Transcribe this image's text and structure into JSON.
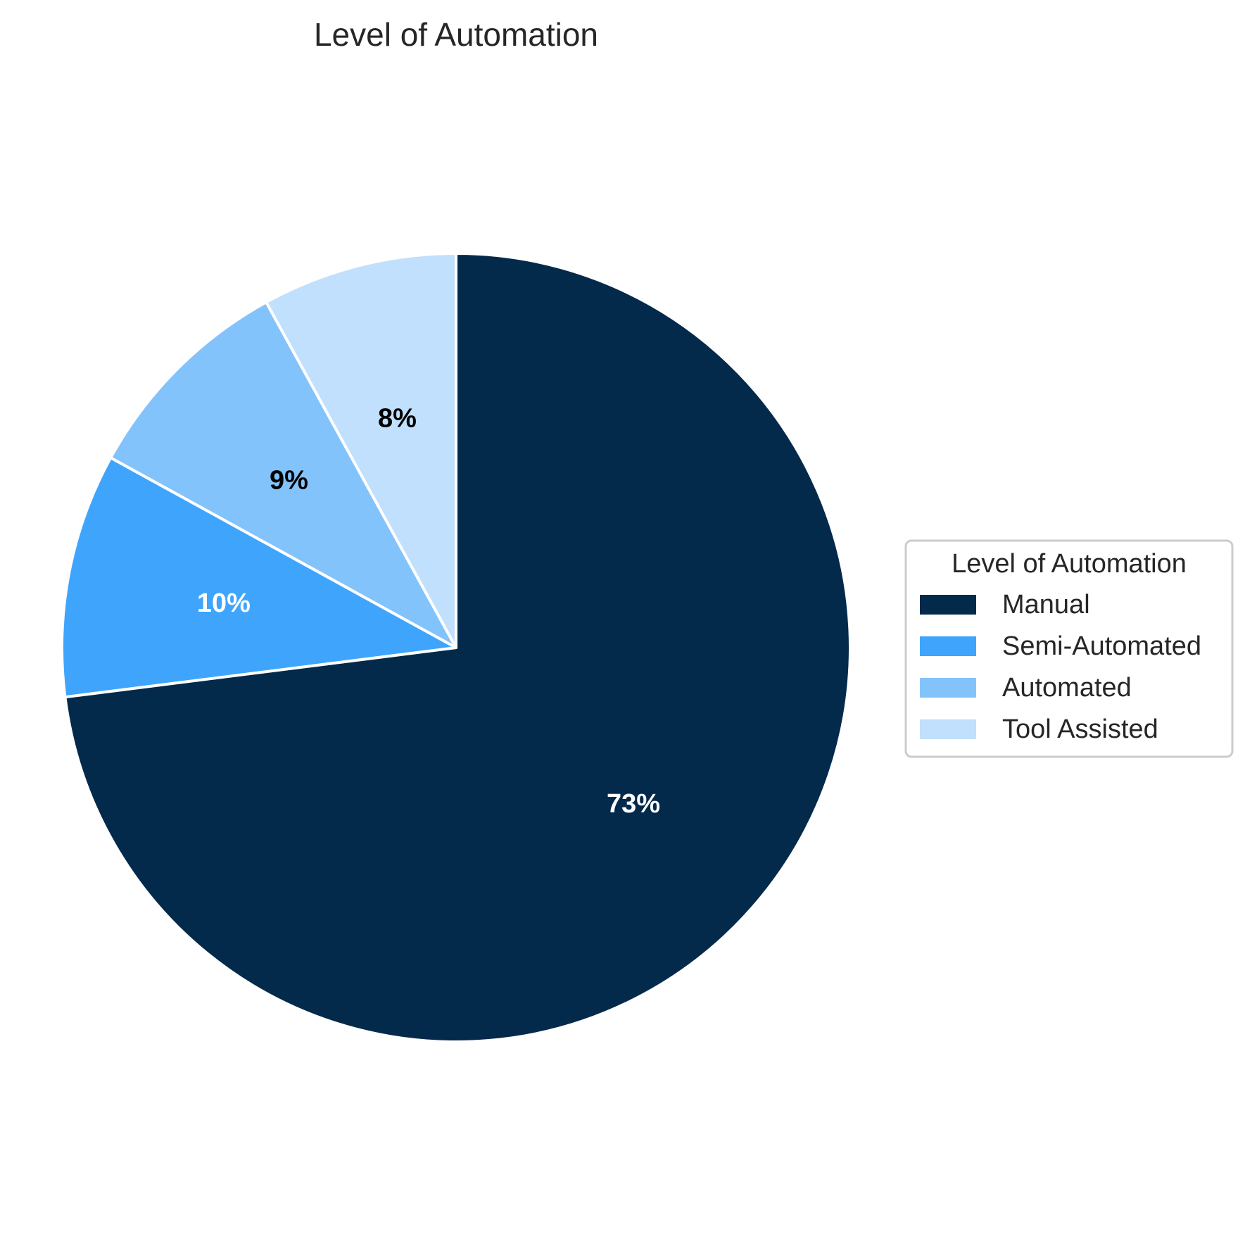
{
  "chart_data": {
    "type": "pie",
    "title": "Level of Automation",
    "start_angle_deg": 90,
    "direction": "clockwise",
    "slices": [
      {
        "label": "Manual",
        "value": 73,
        "display": "73%",
        "color": "#03294b",
        "label_color": "#ffffff"
      },
      {
        "label": "Semi-Automated",
        "value": 10,
        "display": "10%",
        "color": "#3fa5fc",
        "label_color": "#ffffff"
      },
      {
        "label": "Automated",
        "value": 9,
        "display": "9%",
        "color": "#83c3fc",
        "label_color": "#000000"
      },
      {
        "label": "Tool Assisted",
        "value": 8,
        "display": "8%",
        "color": "#c0e0fd",
        "label_color": "#000000"
      }
    ],
    "legend": {
      "title": "Level of Automation",
      "placement": "center-right"
    }
  }
}
